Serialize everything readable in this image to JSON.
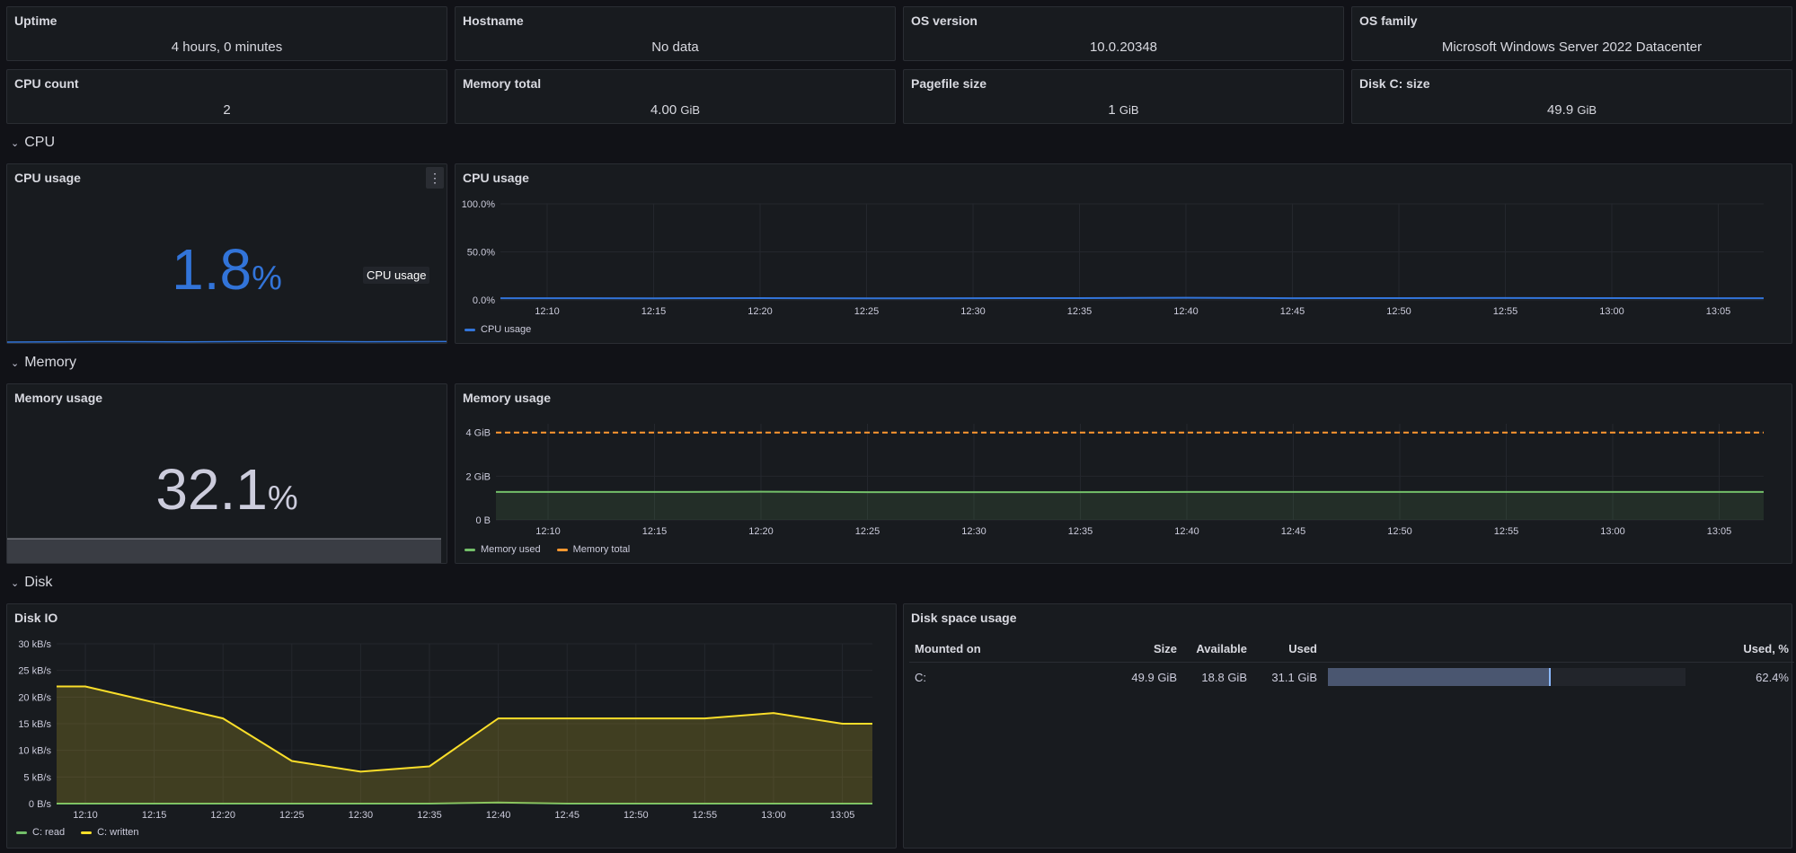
{
  "stats": [
    {
      "title": "Uptime",
      "value": "4 hours, 0 minutes",
      "unit": ""
    },
    {
      "title": "Hostname",
      "value": "No data",
      "unit": ""
    },
    {
      "title": "OS version",
      "value": "10.0.20348",
      "unit": ""
    },
    {
      "title": "OS family",
      "value": "Microsoft Windows Server 2022 Datacenter",
      "unit": ""
    },
    {
      "title": "CPU count",
      "value": "2",
      "unit": ""
    },
    {
      "title": "Memory total",
      "value": "4.00",
      "unit": "GiB"
    },
    {
      "title": "Pagefile size",
      "value": "1",
      "unit": "GiB"
    },
    {
      "title": "Disk C: size",
      "value": "49.9",
      "unit": "GiB"
    }
  ],
  "rows": {
    "cpu": "CPU",
    "memory": "Memory",
    "disk": "Disk"
  },
  "cpu": {
    "stat_title": "CPU usage",
    "stat_value": "1.8",
    "stat_unit": "%",
    "tooltip": "CPU usage",
    "menu_icon": "⋮",
    "chart_title": "CPU usage"
  },
  "memory": {
    "stat_title": "Memory usage",
    "stat_value": "32.1",
    "stat_unit": "%",
    "chart_title": "Memory usage"
  },
  "disk": {
    "io_title": "Disk IO",
    "space_title": "Disk space usage",
    "table": {
      "headers": [
        "Mounted on",
        "Size",
        "Available",
        "Used",
        "Used, %"
      ],
      "rows": [
        {
          "mount": "C:",
          "size": "49.9 GiB",
          "available": "18.8 GiB",
          "used": "31.1 GiB",
          "used_pct_label": "62.4%",
          "used_pct": 62.4
        }
      ]
    }
  },
  "colors": {
    "cpu": "#3274d9",
    "mem_used": "#73bf69",
    "mem_total": "#ff9830",
    "disk_read": "#73bf69",
    "disk_written": "#fade2a",
    "memory_stat": "#ccccdc"
  },
  "chart_data": [
    {
      "type": "line",
      "title": "CPU usage",
      "x": [
        "12:10",
        "12:15",
        "12:20",
        "12:25",
        "12:30",
        "12:35",
        "12:40",
        "12:45",
        "12:50",
        "12:55",
        "13:00",
        "13:05"
      ],
      "ylim": [
        0,
        100
      ],
      "yticks": [
        "0.0%",
        "50.0%",
        "100.0%"
      ],
      "series": [
        {
          "name": "CPU usage",
          "values": [
            1.8,
            1.7,
            1.9,
            1.6,
            1.8,
            1.9,
            2.2,
            1.8,
            1.9,
            2.0,
            1.9,
            1.8
          ]
        }
      ],
      "legend": "bottom-left"
    },
    {
      "type": "line",
      "title": "Memory usage",
      "x": [
        "12:10",
        "12:15",
        "12:20",
        "12:25",
        "12:30",
        "12:35",
        "12:40",
        "12:45",
        "12:50",
        "12:55",
        "13:00",
        "13:05"
      ],
      "ylim": [
        0,
        4.4
      ],
      "yticks": [
        "0 B",
        "2 GiB",
        "4 GiB"
      ],
      "series": [
        {
          "name": "Memory used",
          "values": [
            1.28,
            1.28,
            1.29,
            1.27,
            1.27,
            1.27,
            1.28,
            1.28,
            1.28,
            1.28,
            1.28,
            1.28
          ]
        },
        {
          "name": "Memory total",
          "values": [
            4,
            4,
            4,
            4,
            4,
            4,
            4,
            4,
            4,
            4,
            4,
            4
          ]
        }
      ],
      "legend": "bottom-left"
    },
    {
      "type": "area",
      "title": "Disk IO",
      "x": [
        "12:10",
        "12:15",
        "12:20",
        "12:25",
        "12:30",
        "12:35",
        "12:40",
        "12:45",
        "12:50",
        "12:55",
        "13:00",
        "13:05"
      ],
      "ylim": [
        0,
        30
      ],
      "yticks": [
        "0 B/s",
        "5 kB/s",
        "10 kB/s",
        "15 kB/s",
        "20 kB/s",
        "25 kB/s",
        "30 kB/s"
      ],
      "series": [
        {
          "name": "C: read",
          "values": [
            0,
            0,
            0,
            0,
            0,
            0,
            0.2,
            0,
            0,
            0,
            0,
            0
          ]
        },
        {
          "name": "C: written",
          "values": [
            22,
            19,
            16,
            8,
            6,
            7,
            16,
            16,
            16,
            16,
            17,
            15
          ]
        }
      ],
      "legend": "bottom-left"
    }
  ]
}
